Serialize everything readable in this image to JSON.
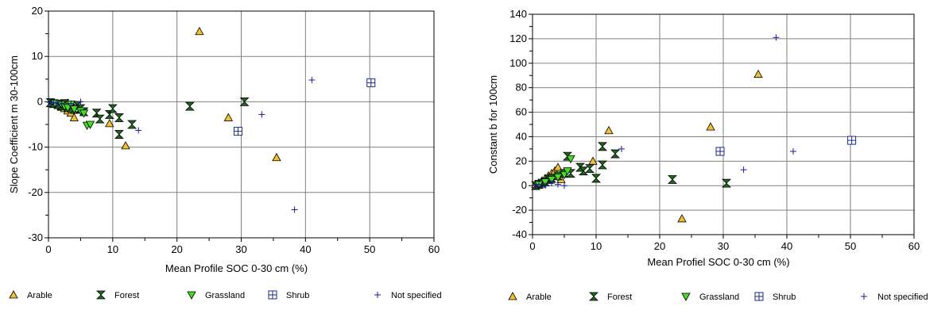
{
  "colors": {
    "arable": "#f0c030",
    "forest": "#1e6b1e",
    "grassland": "#44dd22",
    "shrub": "#1a2a8a",
    "not_specified": "#1a1aa0",
    "grid": "#808080"
  },
  "chart_data": [
    {
      "type": "scatter",
      "xlabel": "Mean Profile SOC 0-30 cm (%)",
      "ylabel": "Slope Coefficient m 30-100cm",
      "xlim": [
        0,
        60
      ],
      "ylim": [
        -30,
        20
      ],
      "xticks": [
        0,
        10,
        20,
        30,
        40,
        50,
        60
      ],
      "yticks": [
        -30,
        -20,
        -10,
        0,
        10,
        20
      ],
      "grid": true,
      "legend_position": "bottom",
      "series": [
        {
          "name": "Arable",
          "marker": "triangle-up",
          "points": [
            [
              0.5,
              -0.2
            ],
            [
              1,
              -0.5
            ],
            [
              1.5,
              -0.8
            ],
            [
              2,
              -1.2
            ],
            [
              2.5,
              -1.5
            ],
            [
              3,
              -0.3
            ],
            [
              3,
              -2
            ],
            [
              3.5,
              -2.5
            ],
            [
              4,
              -3.5
            ],
            [
              4.5,
              -1
            ],
            [
              5,
              -1.8
            ],
            [
              9.5,
              -4.8
            ],
            [
              12,
              -9.7
            ],
            [
              23.5,
              15.5
            ],
            [
              28,
              -3.5
            ],
            [
              35.5,
              -12.3
            ]
          ]
        },
        {
          "name": "Forest",
          "marker": "hourglass",
          "points": [
            [
              0.3,
              -0.2
            ],
            [
              0.8,
              -0.4
            ],
            [
              1.5,
              -0.6
            ],
            [
              2,
              -0.9
            ],
            [
              2.5,
              -0.4
            ],
            [
              3,
              -1.2
            ],
            [
              3.5,
              -1.4
            ],
            [
              4,
              -1.7
            ],
            [
              4.5,
              -0.8
            ],
            [
              5,
              -1.5
            ],
            [
              5.5,
              -2.2
            ],
            [
              7.5,
              -2.5
            ],
            [
              8,
              -3.8
            ],
            [
              9.5,
              -2.8
            ],
            [
              10,
              -1.5
            ],
            [
              11,
              -3.5
            ],
            [
              11,
              -7.2
            ],
            [
              13,
              -5
            ],
            [
              22,
              -1
            ],
            [
              30.5,
              0
            ]
          ]
        },
        {
          "name": "Grassland",
          "marker": "triangle-down",
          "points": [
            [
              1,
              -0.3
            ],
            [
              2,
              -0.6
            ],
            [
              2.5,
              -1
            ],
            [
              3,
              -1.3
            ],
            [
              3.5,
              -0.5
            ],
            [
              4,
              -1.6
            ],
            [
              5,
              -2
            ],
            [
              5.5,
              -2.5
            ],
            [
              6,
              -5.2
            ],
            [
              6.5,
              -5
            ]
          ]
        },
        {
          "name": "Shrub",
          "marker": "square-cross",
          "points": [
            [
              29.5,
              -6.5
            ],
            [
              50.2,
              4.2
            ]
          ]
        },
        {
          "name": "Not specified",
          "marker": "plus",
          "points": [
            [
              0.3,
              -0.1
            ],
            [
              0.8,
              -0.3
            ],
            [
              1.2,
              -0.2
            ],
            [
              2,
              -0.5
            ],
            [
              3.5,
              -0.4
            ],
            [
              5,
              0
            ],
            [
              14,
              -6.3
            ],
            [
              33.2,
              -2.8
            ],
            [
              38.3,
              -23.8
            ],
            [
              41,
              4.8
            ]
          ]
        }
      ]
    },
    {
      "type": "scatter",
      "xlabel": "Mean Profiel SOC 0-30 cm (%)",
      "ylabel": "Constant b for 100cm",
      "xlim": [
        0,
        60
      ],
      "ylim": [
        -40,
        140
      ],
      "xticks": [
        0,
        10,
        20,
        30,
        40,
        50,
        60
      ],
      "yticks": [
        -40,
        -20,
        0,
        20,
        40,
        60,
        80,
        100,
        120,
        140
      ],
      "grid": true,
      "legend_position": "bottom",
      "series": [
        {
          "name": "Arable",
          "marker": "triangle-up",
          "points": [
            [
              0.5,
              1
            ],
            [
              1,
              2
            ],
            [
              1.5,
              4
            ],
            [
              2,
              6
            ],
            [
              2.5,
              8
            ],
            [
              3,
              10
            ],
            [
              3.5,
              12
            ],
            [
              4,
              15
            ],
            [
              4.5,
              5
            ],
            [
              9.5,
              20
            ],
            [
              12,
              45
            ],
            [
              23.5,
              -27
            ],
            [
              28,
              48
            ],
            [
              35.5,
              91
            ]
          ]
        },
        {
          "name": "Forest",
          "marker": "hourglass",
          "points": [
            [
              0.5,
              0
            ],
            [
              1,
              1
            ],
            [
              1.5,
              2
            ],
            [
              2,
              3
            ],
            [
              2.5,
              5
            ],
            [
              3,
              6
            ],
            [
              4,
              8
            ],
            [
              5,
              10
            ],
            [
              5.5,
              24
            ],
            [
              6,
              10
            ],
            [
              7.5,
              15
            ],
            [
              8,
              12
            ],
            [
              9,
              14
            ],
            [
              10,
              6
            ],
            [
              11,
              17
            ],
            [
              11,
              32
            ],
            [
              13,
              26
            ],
            [
              22,
              5
            ],
            [
              30.5,
              2
            ]
          ]
        },
        {
          "name": "Grassland",
          "marker": "triangle-down",
          "points": [
            [
              1,
              1
            ],
            [
              2,
              3
            ],
            [
              3,
              5
            ],
            [
              4,
              7
            ],
            [
              5,
              9
            ],
            [
              5.5,
              12
            ],
            [
              6,
              22
            ]
          ]
        },
        {
          "name": "Shrub",
          "marker": "square-cross",
          "points": [
            [
              29.5,
              28
            ],
            [
              50.2,
              37
            ]
          ]
        },
        {
          "name": "Not specified",
          "marker": "plus",
          "points": [
            [
              0.5,
              0
            ],
            [
              1,
              1
            ],
            [
              2,
              0
            ],
            [
              3,
              2
            ],
            [
              4,
              1
            ],
            [
              5,
              0
            ],
            [
              14,
              30
            ],
            [
              33.2,
              13
            ],
            [
              38.3,
              121
            ],
            [
              41,
              28
            ]
          ]
        }
      ]
    }
  ]
}
